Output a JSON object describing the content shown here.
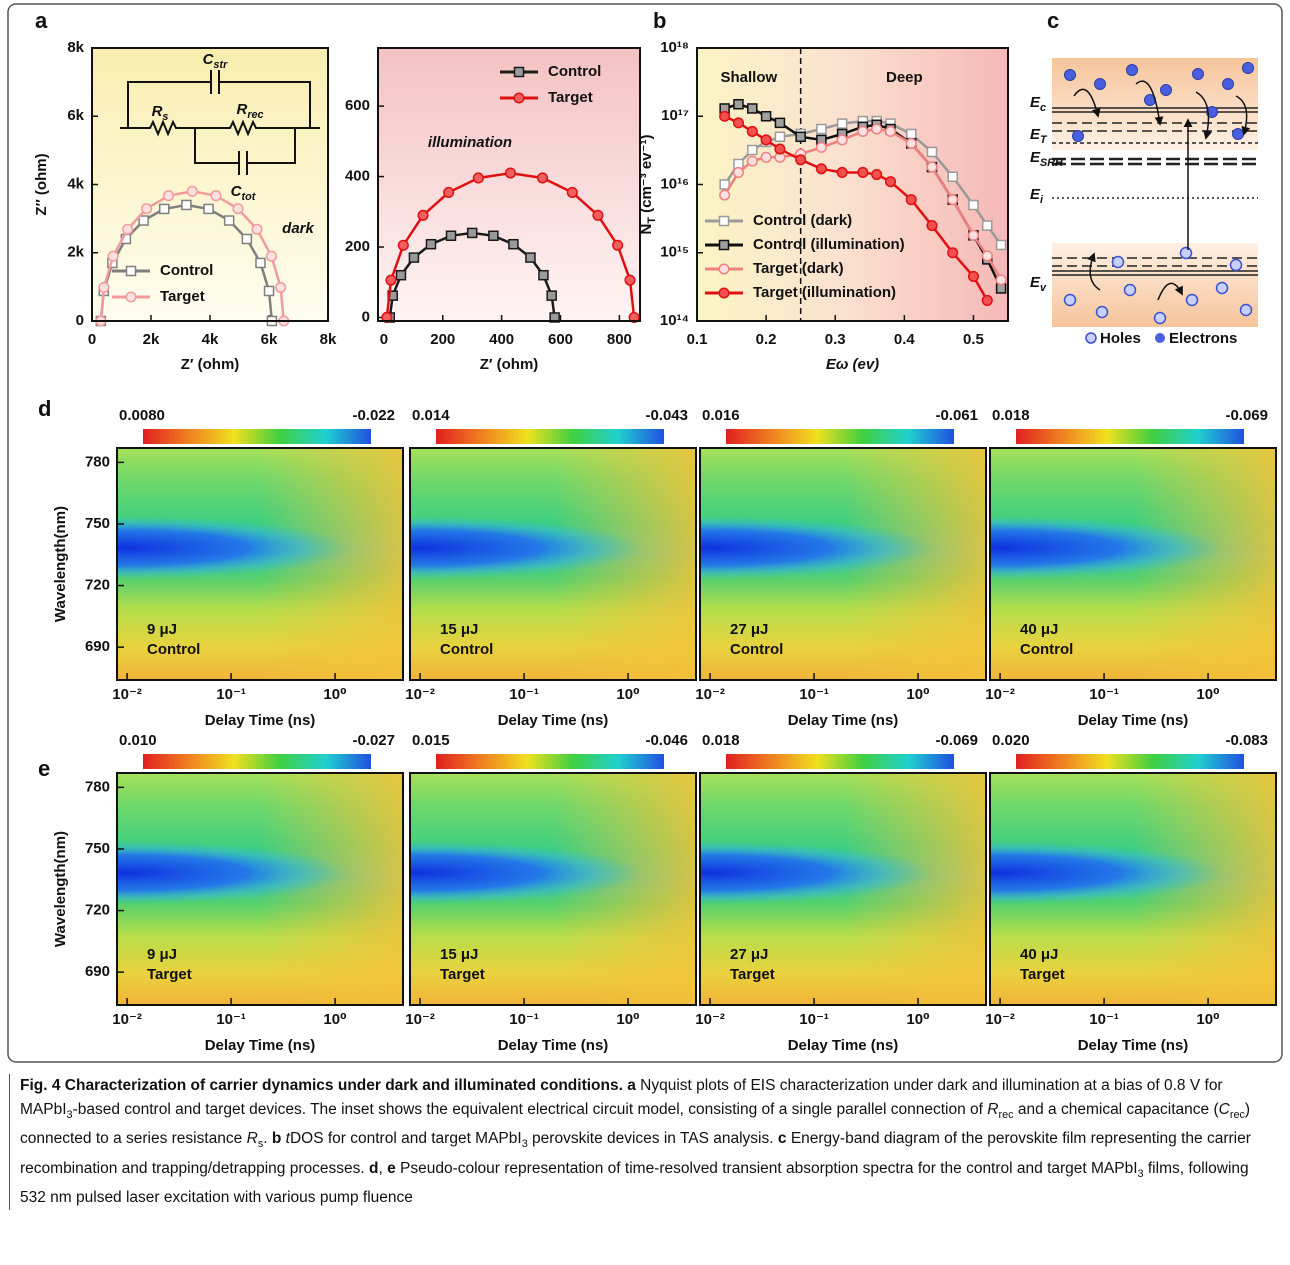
{
  "panel_labels": [
    "a",
    "b",
    "c",
    "d",
    "e"
  ],
  "chart_data": [
    {
      "type": "line",
      "xlabel": "Z′ (ohm)",
      "ylabel": "Z″ (ohm)",
      "xlim": [
        0,
        8000
      ],
      "ylim": [
        0,
        8000
      ],
      "xticks": [
        0,
        {
          "value": 2000,
          "label": "2k"
        },
        {
          "value": 4000,
          "label": "4k"
        },
        {
          "value": 6000,
          "label": "6k"
        },
        {
          "value": 8000,
          "label": "8k"
        }
      ],
      "yticks": [
        0,
        {
          "value": 2000,
          "label": "2k"
        },
        {
          "value": 4000,
          "label": "4k"
        },
        {
          "value": 6000,
          "label": "6k"
        },
        {
          "value": 8000,
          "label": "8k"
        }
      ],
      "annotation": "dark",
      "legend": "lower left",
      "inset_labels": [
        {
          "main": "C",
          "sub": "str"
        },
        {
          "main": "R",
          "sub": "s"
        },
        {
          "main": "R",
          "sub": "rec"
        },
        {
          "main": "C",
          "sub": "tot"
        }
      ],
      "series": [
        {
          "name": "Control",
          "color": "#7f7f7f",
          "marker": "square",
          "marker_fill": "#ffffff",
          "x": [
            300,
            399,
            689,
            1149,
            1750,
            2449,
            3200,
            3951,
            4650,
            5251,
            5711,
            6001,
            6100
          ],
          "values": [
            0,
            880,
            1700,
            2404,
            2944,
            3284,
            3400,
            3284,
            2944,
            2404,
            1700,
            880,
            0
          ]
        },
        {
          "name": "Target",
          "color": "#f39a9a",
          "marker": "circle",
          "marker_fill": "#fde0e0",
          "x": [
            300,
            406,
            715,
            1208,
            1850,
            2598,
            3400,
            4202,
            4950,
            5592,
            6085,
            6394,
            6500
          ],
          "values": [
            0,
            984,
            1900,
            2687,
            3291,
            3671,
            3800,
            3671,
            3291,
            2687,
            1900,
            984,
            0
          ]
        }
      ]
    },
    {
      "type": "line",
      "xlabel": "Z′ (ohm)",
      "xlim": [
        -20,
        870
      ],
      "ylim": [
        -10,
        765
      ],
      "xticks": [
        0,
        200,
        400,
        600,
        800
      ],
      "yticks": [
        0,
        200,
        400,
        600
      ],
      "annotation": "illumination",
      "legend": "upper right",
      "series": [
        {
          "name": "Control",
          "color": "#1a1a1a",
          "marker": "square",
          "marker_fill": "#9a9a9a",
          "x": [
            20,
            30,
            58,
            102,
            160,
            228,
            300,
            372,
            440,
            498,
            542,
            570,
            580
          ],
          "values": [
            0,
            62,
            120,
            170,
            208,
            232,
            240,
            232,
            208,
            170,
            120,
            62,
            0
          ]
        },
        {
          "name": "Target",
          "color": "#e01010",
          "marker": "circle",
          "marker_fill": "#f06060",
          "x": [
            10,
            24,
            66,
            133,
            220,
            321,
            430,
            539,
            640,
            727,
            794,
            836,
            850
          ],
          "values": [
            0,
            106,
            205,
            290,
            355,
            396,
            410,
            396,
            355,
            290,
            205,
            106,
            0
          ]
        }
      ]
    },
    {
      "type": "line",
      "xlabel": "Eω (ev)",
      "ylabel": {
        "main": "N",
        "sub": "T",
        "rest": " (cm⁻³ ev⁻¹)"
      },
      "yscale": "log",
      "xlim": [
        0.1,
        0.55
      ],
      "ylim": [
        100000000000000.0,
        1e+18
      ],
      "xticks": [
        0.1,
        0.2,
        0.3,
        0.4,
        0.5
      ],
      "yticks": [
        {
          "value": 100000000000000.0,
          "label": "10¹⁴"
        },
        {
          "value": 1000000000000000.0,
          "label": "10¹⁵"
        },
        {
          "value": 1e+16,
          "label": "10¹⁶"
        },
        {
          "value": 1e+17,
          "label": "10¹⁷"
        },
        {
          "value": 1e+18,
          "label": "10¹⁸"
        }
      ],
      "vline": 0.25,
      "regions": [
        "Shallow",
        "Deep"
      ],
      "legend": "lower left",
      "series": [
        {
          "name": "Control (dark)",
          "color": "#9a9a9a",
          "marker": "square",
          "marker_fill": "#ffffff",
          "x": [
            0.14,
            0.16,
            0.18,
            0.2,
            0.22,
            0.25,
            0.28,
            0.31,
            0.34,
            0.36,
            0.38,
            0.41,
            0.44,
            0.47,
            0.5,
            0.52,
            0.54
          ],
          "values": [
            1e+16,
            2e+16,
            3.2e+16,
            4.2e+16,
            5e+16,
            5.5e+16,
            6.5e+16,
            7.8e+16,
            8.5e+16,
            8.5e+16,
            7.8e+16,
            5.5e+16,
            3e+16,
            1.3e+16,
            5000000000000000.0,
            2500000000000000.0,
            1300000000000000.0
          ]
        },
        {
          "name": "Control (illumination)",
          "color": "#111111",
          "marker": "square",
          "marker_fill": "#a0a0a0",
          "x": [
            0.14,
            0.16,
            0.18,
            0.2,
            0.22,
            0.25,
            0.28,
            0.31,
            0.34,
            0.36,
            0.38,
            0.41,
            0.44,
            0.47,
            0.5,
            0.52,
            0.54
          ],
          "values": [
            1.3e+17,
            1.5e+17,
            1.3e+17,
            1e+17,
            8e+16,
            5e+16,
            4.5e+16,
            5.5e+16,
            7e+16,
            7.5e+16,
            6.5e+16,
            4e+16,
            1.8e+16,
            6000000000000000.0,
            1800000000000000.0,
            800000000000000.0,
            300000000000000.0
          ]
        },
        {
          "name": "Target (dark)",
          "color": "#f08080",
          "marker": "circle",
          "marker_fill": "#fde0e0",
          "x": [
            0.14,
            0.16,
            0.18,
            0.2,
            0.22,
            0.25,
            0.28,
            0.31,
            0.34,
            0.36,
            0.38,
            0.41,
            0.44,
            0.47,
            0.5,
            0.52,
            0.54
          ],
          "values": [
            7000000000000000.0,
            1.5e+16,
            2.2e+16,
            2.5e+16,
            2.5e+16,
            2.8e+16,
            3.5e+16,
            4.5e+16,
            6e+16,
            6.5e+16,
            6e+16,
            4e+16,
            1.8e+16,
            6000000000000000.0,
            1800000000000000.0,
            900000000000000.0,
            400000000000000.0
          ]
        },
        {
          "name": "Target (illumination)",
          "color": "#e01010",
          "marker": "circle",
          "marker_fill": "#f05050",
          "x": [
            0.14,
            0.16,
            0.18,
            0.2,
            0.22,
            0.25,
            0.28,
            0.31,
            0.34,
            0.36,
            0.38,
            0.41,
            0.44,
            0.47,
            0.5,
            0.52
          ],
          "values": [
            1e+17,
            8e+16,
            6e+16,
            4.5e+16,
            3.3e+16,
            2.3e+16,
            1.7e+16,
            1.5e+16,
            1.5e+16,
            1.4e+16,
            1.1e+16,
            6000000000000000.0,
            2500000000000000.0,
            1000000000000000.0,
            450000000000000.0,
            200000000000000.0
          ]
        }
      ]
    },
    {
      "type": "heatmap",
      "xscale": "log",
      "xlim": [
        0.008,
        4.5
      ],
      "ylim": [
        674,
        787
      ],
      "xticks": [
        {
          "value": 0.01,
          "label": "10⁻²"
        },
        {
          "value": 0.1,
          "label": "10⁻¹"
        },
        {
          "value": 1,
          "label": "10⁰"
        }
      ],
      "yticks": [
        690,
        720,
        750,
        780
      ],
      "xlabel": "Delay Time (ns)",
      "ylabel": "Wavelength(nm)",
      "clim": [
        {
          "value": 0.008,
          "label": "0.0080"
        },
        -0.022
      ],
      "annotation": [
        "9 μJ",
        "Control"
      ]
    },
    {
      "type": "heatmap",
      "xscale": "log",
      "xlim": [
        0.008,
        4.5
      ],
      "ylim": [
        674,
        787
      ],
      "xticks": [
        {
          "value": 0.01,
          "label": "10⁻²"
        },
        {
          "value": 0.1,
          "label": "10⁻¹"
        },
        {
          "value": 1,
          "label": "10⁰"
        }
      ],
      "xlabel": "Delay Time (ns)",
      "clim": [
        0.014,
        -0.043
      ],
      "annotation": [
        "15 μJ",
        "Control"
      ]
    },
    {
      "type": "heatmap",
      "xscale": "log",
      "xlim": [
        0.008,
        4.5
      ],
      "ylim": [
        674,
        787
      ],
      "xticks": [
        {
          "value": 0.01,
          "label": "10⁻²"
        },
        {
          "value": 0.1,
          "label": "10⁻¹"
        },
        {
          "value": 1,
          "label": "10⁰"
        }
      ],
      "xlabel": "Delay Time (ns)",
      "clim": [
        0.016,
        -0.061
      ],
      "annotation": [
        "27 μJ",
        "Control"
      ]
    },
    {
      "type": "heatmap",
      "xscale": "log",
      "xlim": [
        0.008,
        4.5
      ],
      "ylim": [
        674,
        787
      ],
      "xticks": [
        {
          "value": 0.01,
          "label": "10⁻²"
        },
        {
          "value": 0.1,
          "label": "10⁻¹"
        },
        {
          "value": 1,
          "label": "10⁰"
        }
      ],
      "xlabel": "Delay Time (ns)",
      "clim": [
        0.018,
        -0.069
      ],
      "annotation": [
        "40 μJ",
        "Control"
      ]
    },
    {
      "type": "heatmap",
      "xscale": "log",
      "xlim": [
        0.008,
        4.5
      ],
      "ylim": [
        674,
        787
      ],
      "xticks": [
        {
          "value": 0.01,
          "label": "10⁻²"
        },
        {
          "value": 0.1,
          "label": "10⁻¹"
        },
        {
          "value": 1,
          "label": "10⁰"
        }
      ],
      "yticks": [
        690,
        720,
        750,
        780
      ],
      "xlabel": "Delay Time (ns)",
      "ylabel": "Wavelength(nm)",
      "clim": [
        {
          "value": 0.01,
          "label": "0.010"
        },
        -0.027
      ],
      "annotation": [
        "9 μJ",
        "Target"
      ]
    },
    {
      "type": "heatmap",
      "xscale": "log",
      "xlim": [
        0.008,
        4.5
      ],
      "ylim": [
        674,
        787
      ],
      "xticks": [
        {
          "value": 0.01,
          "label": "10⁻²"
        },
        {
          "value": 0.1,
          "label": "10⁻¹"
        },
        {
          "value": 1,
          "label": "10⁰"
        }
      ],
      "xlabel": "Delay Time (ns)",
      "clim": [
        0.015,
        -0.046
      ],
      "annotation": [
        "15 μJ",
        "Target"
      ]
    },
    {
      "type": "heatmap",
      "xscale": "log",
      "xlim": [
        0.008,
        4.5
      ],
      "ylim": [
        674,
        787
      ],
      "xticks": [
        {
          "value": 0.01,
          "label": "10⁻²"
        },
        {
          "value": 0.1,
          "label": "10⁻¹"
        },
        {
          "value": 1,
          "label": "10⁰"
        }
      ],
      "xlabel": "Delay Time (ns)",
      "clim": [
        0.018,
        -0.069
      ],
      "annotation": [
        "27 μJ",
        "Target"
      ]
    },
    {
      "type": "heatmap",
      "xscale": "log",
      "xlim": [
        0.008,
        4.5
      ],
      "ylim": [
        674,
        787
      ],
      "xticks": [
        {
          "value": 0.01,
          "label": "10⁻²"
        },
        {
          "value": 0.1,
          "label": "10⁻¹"
        },
        {
          "value": 1,
          "label": "10⁰"
        }
      ],
      "xlabel": "Delay Time (ns)",
      "clim": [
        {
          "value": 0.02,
          "label": "0.020"
        },
        -0.083
      ],
      "annotation": [
        "40 μJ",
        "Target"
      ]
    }
  ],
  "diagram": {
    "levels": [
      {
        "main": "E",
        "sub": "c"
      },
      {
        "main": "E",
        "sub": "T"
      },
      {
        "main": "E",
        "sub": "SRH"
      },
      {
        "main": "E",
        "sub": "i"
      },
      {
        "main": "E",
        "sub": "v"
      }
    ],
    "legend": [
      "Holes",
      "Electrons"
    ]
  },
  "caption": {
    "runs": [
      "Fig. 4 Characterization of carrier dynamics under dark and illuminated conditions.",
      "a",
      "Nyquist plots of EIS characterization under dark and illumination at a bias of 0.8 V for MAPbI",
      "3",
      "-based control and target devices. The inset shows the equivalent electrical circuit model, consisting of a single parallel connection of",
      "R",
      "rec",
      "and a chemical capacitance (",
      "C",
      "rec",
      ") connected to a series resistance",
      "R",
      "s",
      ".",
      "b",
      "t",
      "DOS for control and target MAPbI",
      "3",
      "perovskite devices in TAS analysis.",
      "c",
      "Energy-band diagram of the perovskite film representing the carrier recombination and trapping/detrapping processes.",
      "d",
      ",",
      "e",
      "Pseudo-colour representation of time-resolved transient absorption spectra for the control and target MAPbI",
      "3",
      "films, following 532 nm pulsed laser excitation with various pump fluence"
    ]
  }
}
